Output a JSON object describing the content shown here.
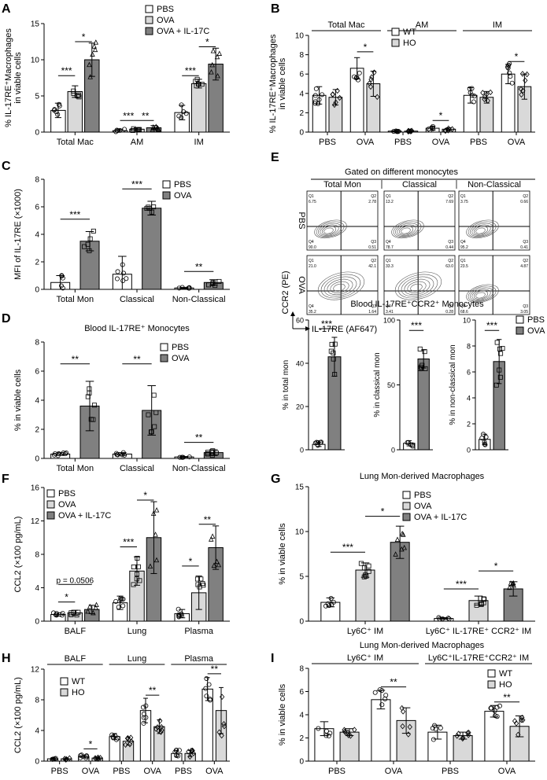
{
  "panel_labels": [
    "A",
    "B",
    "C",
    "D",
    "E",
    "F",
    "G",
    "H",
    "I"
  ],
  "colors": {
    "white": "#ffffff",
    "light": "#d9d9d9",
    "dark": "#808080",
    "axis": "#000000"
  },
  "chart_data": [
    {
      "id": "A",
      "type": "bar",
      "ylabel": "% IL-17RE⁺Macrophages in viable cells",
      "ylim": [
        0,
        15
      ],
      "yticks": [
        0,
        5,
        10,
        15
      ],
      "categories": [
        "Total Mac",
        "AM",
        "IM"
      ],
      "series": [
        {
          "name": "PBS",
          "fill": "white",
          "values": [
            3,
            0.2,
            2.7
          ],
          "err": [
            1,
            0.2,
            1
          ]
        },
        {
          "name": "OVA",
          "fill": "light",
          "values": [
            5.6,
            0.4,
            6.7
          ],
          "err": [
            0.8,
            0.2,
            0.6
          ]
        },
        {
          "name": "OVA + IL-17C",
          "fill": "dark",
          "values": [
            10,
            0.6,
            9.4
          ],
          "err": [
            2.3,
            0.3,
            2.2
          ]
        }
      ],
      "sig": [
        {
          "cat": 0,
          "a": 0,
          "b": 1,
          "y": 7.8,
          "label": "***"
        },
        {
          "cat": 0,
          "a": 1,
          "b": 2,
          "y": 12.5,
          "label": "*"
        },
        {
          "cat": 1,
          "a": 0,
          "b": 1,
          "y": 1.6,
          "label": "***"
        },
        {
          "cat": 1,
          "a": 1,
          "b": 2,
          "y": 1.6,
          "label": "**"
        },
        {
          "cat": 2,
          "a": 0,
          "b": 1,
          "y": 7.8,
          "label": "***"
        },
        {
          "cat": 2,
          "a": 1,
          "b": 2,
          "y": 11.8,
          "label": "*"
        }
      ],
      "legend": [
        "PBS",
        "OVA",
        "OVA + IL-17C"
      ]
    },
    {
      "id": "B",
      "type": "bar",
      "ylabel": "% IL-17RE⁺Macrophages in viable cells",
      "ylim": [
        0,
        10
      ],
      "yticks": [
        0,
        2,
        4,
        6,
        8,
        10
      ],
      "group_titles": [
        "Total Mac",
        "AM",
        "IM"
      ],
      "categories": [
        "PBS",
        "OVA",
        "PBS",
        "OVA",
        "PBS",
        "OVA"
      ],
      "series": [
        {
          "name": "WT",
          "fill": "white",
          "values": [
            3.8,
            6.6,
            0.1,
            0.4,
            3.8,
            6
          ],
          "err": [
            0.9,
            1.1,
            0.05,
            0.2,
            0.8,
            1
          ]
        },
        {
          "name": "HO",
          "fill": "light",
          "values": [
            3.6,
            5,
            0.1,
            0.3,
            3.6,
            4.7
          ],
          "err": [
            0.8,
            1.3,
            0.05,
            0.15,
            0.6,
            1.3
          ]
        }
      ],
      "sig": [
        {
          "cat": 1,
          "a": 0,
          "b": 1,
          "y": 8.3,
          "label": "*"
        },
        {
          "cat": 3,
          "a": 0,
          "b": 1,
          "y": 1.2,
          "label": "*"
        },
        {
          "cat": 5,
          "a": 0,
          "b": 1,
          "y": 7.3,
          "label": "*"
        }
      ],
      "legend": [
        "WT",
        "HO"
      ]
    },
    {
      "id": "C",
      "type": "bar",
      "ylabel": "MFI of IL-17RE (×1000)",
      "ylim": [
        0,
        8
      ],
      "yticks": [
        0,
        2,
        4,
        6,
        8
      ],
      "categories": [
        "Total Mon",
        "Classical",
        "Non-Classical"
      ],
      "series": [
        {
          "name": "PBS",
          "fill": "white",
          "values": [
            0.5,
            1.1,
            0.1
          ],
          "err": [
            0.5,
            1.3,
            0.05
          ]
        },
        {
          "name": "OVA",
          "fill": "dark",
          "values": [
            3.5,
            5.9,
            0.5
          ],
          "err": [
            0.7,
            0.5,
            0.2
          ]
        }
      ],
      "sig": [
        {
          "cat": 0,
          "a": 0,
          "b": 1,
          "y": 5.1,
          "label": "***"
        },
        {
          "cat": 1,
          "a": 0,
          "b": 1,
          "y": 7.3,
          "label": "***"
        },
        {
          "cat": 2,
          "a": 0,
          "b": 1,
          "y": 1.3,
          "label": "**"
        }
      ],
      "legend": [
        "PBS",
        "OVA"
      ]
    },
    {
      "id": "D",
      "type": "bar",
      "title": "Blood IL-17RE⁺ Monocytes",
      "ylabel": "% in viable cells",
      "ylim": [
        0,
        8
      ],
      "yticks": [
        0,
        2,
        4,
        6,
        8
      ],
      "categories": [
        "Total Mon",
        "Classical",
        "Non-Classical"
      ],
      "series": [
        {
          "name": "PBS",
          "fill": "white",
          "values": [
            0.3,
            0.3,
            0.1
          ],
          "err": [
            0.1,
            0.1,
            0.03
          ]
        },
        {
          "name": "OVA",
          "fill": "dark",
          "values": [
            3.6,
            3.3,
            0.4
          ],
          "err": [
            1.7,
            1.7,
            0.2
          ]
        }
      ],
      "sig": [
        {
          "cat": 0,
          "a": 0,
          "b": 1,
          "y": 6.5,
          "label": "**"
        },
        {
          "cat": 1,
          "a": 0,
          "b": 1,
          "y": 6.5,
          "label": "**"
        },
        {
          "cat": 2,
          "a": 0,
          "b": 1,
          "y": 1.1,
          "label": "**"
        }
      ],
      "legend": [
        "PBS",
        "OVA"
      ]
    },
    {
      "id": "E1",
      "type": "bar",
      "ylabel": "% in total mon",
      "ylim": [
        0,
        60
      ],
      "yticks": [
        0,
        20,
        40,
        60
      ],
      "categories": [
        ""
      ],
      "series": [
        {
          "name": "PBS",
          "fill": "white",
          "values": [
            2.5
          ],
          "err": [
            1
          ]
        },
        {
          "name": "OVA",
          "fill": "dark",
          "values": [
            43
          ],
          "err": [
            9
          ]
        }
      ],
      "sig": [
        {
          "cat": 0,
          "a": 0,
          "b": 1,
          "y": 56,
          "label": "***"
        }
      ]
    },
    {
      "id": "E2",
      "type": "bar",
      "ylabel": "% in classical mon",
      "ylim": [
        0,
        100
      ],
      "yticks": [
        0,
        50,
        100
      ],
      "categories": [
        ""
      ],
      "series": [
        {
          "name": "PBS",
          "fill": "white",
          "values": [
            5
          ],
          "err": [
            2
          ]
        },
        {
          "name": "OVA",
          "fill": "dark",
          "values": [
            70
          ],
          "err": [
            7
          ]
        }
      ],
      "sig": [
        {
          "cat": 0,
          "a": 0,
          "b": 1,
          "y": 92,
          "label": "***"
        }
      ]
    },
    {
      "id": "E3",
      "type": "bar",
      "ylabel": "% in non-classical mon",
      "ylim": [
        0,
        10
      ],
      "yticks": [
        0,
        2,
        4,
        6,
        8,
        10
      ],
      "categories": [
        ""
      ],
      "series": [
        {
          "name": "PBS",
          "fill": "white",
          "values": [
            0.8
          ],
          "err": [
            0.4
          ]
        },
        {
          "name": "OVA",
          "fill": "dark",
          "values": [
            6.8
          ],
          "err": [
            1.7
          ]
        }
      ],
      "sig": [
        {
          "cat": 0,
          "a": 0,
          "b": 1,
          "y": 9.2,
          "label": "***"
        }
      ],
      "legend": [
        "PBS",
        "OVA"
      ]
    },
    {
      "id": "F",
      "type": "bar",
      "ylabel": "CCL2 (×100 pg/mL)",
      "ylim": [
        0,
        16
      ],
      "yticks": [
        0,
        4,
        8,
        12,
        16
      ],
      "categories": [
        "BALF",
        "Lung",
        "Plasma"
      ],
      "series": [
        {
          "name": "PBS",
          "fill": "white",
          "values": [
            0.8,
            2.2,
            0.9
          ],
          "err": [
            0.2,
            0.8,
            0.5
          ]
        },
        {
          "name": "OVA",
          "fill": "light",
          "values": [
            1,
            6,
            3.4
          ],
          "err": [
            0.3,
            1.7,
            2
          ]
        },
        {
          "name": "OVA + IL-17C",
          "fill": "dark",
          "values": [
            1.4,
            10,
            8.8
          ],
          "err": [
            0.5,
            4.3,
            2.6
          ]
        }
      ],
      "sig": [
        {
          "cat": 0,
          "a": 0,
          "b": 1,
          "y": 2.3,
          "label": "*"
        },
        {
          "cat": 0,
          "a": 0,
          "b": 2,
          "y": 4.4,
          "label": "p = 0.0506"
        },
        {
          "cat": 1,
          "a": 0,
          "b": 1,
          "y": 8.9,
          "label": "***"
        },
        {
          "cat": 1,
          "a": 1,
          "b": 2,
          "y": 14.5,
          "label": "*"
        },
        {
          "cat": 2,
          "a": 0,
          "b": 1,
          "y": 6.6,
          "label": "*"
        },
        {
          "cat": 2,
          "a": 1,
          "b": 2,
          "y": 11.6,
          "label": "**"
        }
      ],
      "legend": [
        "PBS",
        "OVA",
        "OVA + IL-17C"
      ]
    },
    {
      "id": "G",
      "type": "bar",
      "title": "Lung  Mon-derived Macrophages",
      "ylabel": "% in viable cells",
      "ylim": [
        0,
        15
      ],
      "yticks": [
        0,
        5,
        10,
        15
      ],
      "categories": [
        "Ly6C⁺ IM",
        "Ly6C⁺ IL-17RE⁺ CCR2⁺ IM"
      ],
      "series": [
        {
          "name": "PBS",
          "fill": "white",
          "values": [
            2.1,
            0.3
          ],
          "err": [
            0.5,
            0.1
          ]
        },
        {
          "name": "OVA",
          "fill": "light",
          "values": [
            5.7,
            2.3
          ],
          "err": [
            0.8,
            0.5
          ]
        },
        {
          "name": "OVA + IL-17C",
          "fill": "dark",
          "values": [
            8.8,
            3.6
          ],
          "err": [
            1.8,
            0.8
          ]
        }
      ],
      "sig": [
        {
          "cat": 0,
          "a": 0,
          "b": 1,
          "y": 7.7,
          "label": "***"
        },
        {
          "cat": 0,
          "a": 1,
          "b": 2,
          "y": 11.7,
          "label": "*"
        },
        {
          "cat": 1,
          "a": 0,
          "b": 1,
          "y": 3.6,
          "label": "***"
        },
        {
          "cat": 1,
          "a": 1,
          "b": 2,
          "y": 5.6,
          "label": "*"
        }
      ],
      "legend": [
        "PBS",
        "OVA",
        "OVA + IL-17C"
      ]
    },
    {
      "id": "H",
      "type": "bar",
      "ylabel": "CCL2 (×100 pg/mL)",
      "ylim": [
        0,
        12
      ],
      "yticks": [
        0,
        4,
        8,
        12
      ],
      "group_titles": [
        "BALF",
        "Lung",
        "Plasma"
      ],
      "categories": [
        "PBS",
        "OVA",
        "PBS",
        "OVA",
        "PBS",
        "OVA"
      ],
      "series": [
        {
          "name": "WT",
          "fill": "white",
          "values": [
            0.3,
            0.6,
            3.2,
            6.6,
            1,
            9.4
          ],
          "err": [
            0.1,
            0.2,
            0.4,
            1.6,
            0.4,
            1.5
          ]
        },
        {
          "name": "HO",
          "fill": "light",
          "values": [
            0.3,
            0.4,
            2.6,
            4.5,
            1,
            6.6
          ],
          "err": [
            0.1,
            0.1,
            0.5,
            0.9,
            0.4,
            3
          ]
        }
      ],
      "sig": [
        {
          "cat": 1,
          "a": 0,
          "b": 1,
          "y": 1.6,
          "label": "*"
        },
        {
          "cat": 3,
          "a": 0,
          "b": 1,
          "y": 8.6,
          "label": "**"
        },
        {
          "cat": 5,
          "a": 0,
          "b": 1,
          "y": 11.4,
          "label": "**"
        }
      ],
      "legend": [
        "WT",
        "HO"
      ]
    },
    {
      "id": "I",
      "type": "bar",
      "title": "Lung  Mon-derived Macrophages",
      "ylabel": "% in viable cells",
      "ylim": [
        0,
        8
      ],
      "yticks": [
        0,
        2,
        4,
        6,
        8
      ],
      "group_titles": [
        "Ly6C⁺ IM",
        "Ly6C⁺IL-17RE⁺CCR2⁺ IM"
      ],
      "categories": [
        "PBS",
        "OVA",
        "PBS",
        "OVA"
      ],
      "series": [
        {
          "name": "WT",
          "fill": "white",
          "values": [
            2.8,
            5.3,
            2.5,
            4.3
          ],
          "err": [
            0.6,
            0.8,
            0.6,
            0.5
          ]
        },
        {
          "name": "HO",
          "fill": "light",
          "values": [
            2.5,
            3.5,
            2.2,
            3
          ],
          "err": [
            0.3,
            1.1,
            0.3,
            0.9
          ]
        }
      ],
      "sig": [
        {
          "cat": 1,
          "a": 0,
          "b": 1,
          "y": 6.4,
          "label": "**"
        },
        {
          "cat": 3,
          "a": 0,
          "b": 1,
          "y": 5.1,
          "label": "**"
        }
      ],
      "legend": [
        "WT",
        "HO"
      ]
    }
  ],
  "flow": {
    "title": "Gated on different monocytes",
    "columns": [
      "Total Mon",
      "Classical",
      "Non-Classical"
    ],
    "rows": [
      "PBS",
      "OVA"
    ],
    "ylabel": "CCR2 (PE)",
    "xlabel": "IL-17RE (AF647)",
    "e_title": "Blood IL-17RE⁺CCR2⁺ Monocytes",
    "quadrants": [
      [
        {
          "Q1": "6.75",
          "Q2": "2.78",
          "Q3": "0.51",
          "Q4": "90.0"
        },
        {
          "Q1": "13.2",
          "Q2": "7.69",
          "Q3": "0.44",
          "Q4": "78.7"
        },
        {
          "Q1": "3.75",
          "Q2": "0.66",
          "Q3": "0.41",
          "Q4": "95.2"
        }
      ],
      [
        {
          "Q1": "21.0",
          "Q2": "42.1",
          "Q3": "1.64",
          "Q4": "35.2"
        },
        {
          "Q1": "33.3",
          "Q2": "63.0",
          "Q3": "0.28",
          "Q4": "3.41"
        },
        {
          "Q1": "23.5",
          "Q2": "4.87",
          "Q3": "3.05",
          "Q4": "68.6"
        }
      ]
    ]
  }
}
